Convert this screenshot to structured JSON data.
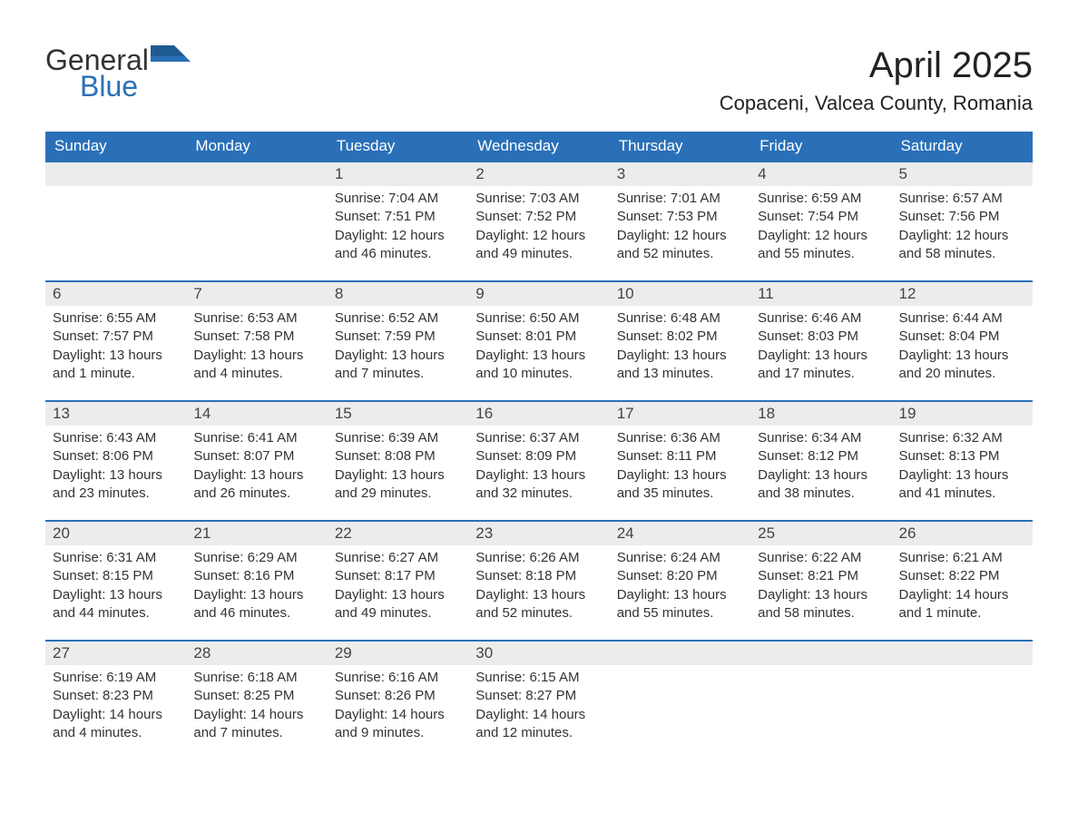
{
  "logo": {
    "word1": "General",
    "word2": "Blue"
  },
  "title": "April 2025",
  "location": "Copaceni, Valcea County, Romania",
  "colors": {
    "header_bg": "#2a70b8",
    "header_text": "#ffffff",
    "daynum_bg": "#ececec",
    "border_top": "#2a70b8",
    "text": "#333333"
  },
  "weekdays": [
    "Sunday",
    "Monday",
    "Tuesday",
    "Wednesday",
    "Thursday",
    "Friday",
    "Saturday"
  ],
  "cells": [
    {
      "day": "",
      "sunrise": "",
      "sunset": "",
      "daylight": ""
    },
    {
      "day": "",
      "sunrise": "",
      "sunset": "",
      "daylight": ""
    },
    {
      "day": "1",
      "sunrise": "Sunrise: 7:04 AM",
      "sunset": "Sunset: 7:51 PM",
      "daylight": "Daylight: 12 hours and 46 minutes."
    },
    {
      "day": "2",
      "sunrise": "Sunrise: 7:03 AM",
      "sunset": "Sunset: 7:52 PM",
      "daylight": "Daylight: 12 hours and 49 minutes."
    },
    {
      "day": "3",
      "sunrise": "Sunrise: 7:01 AM",
      "sunset": "Sunset: 7:53 PM",
      "daylight": "Daylight: 12 hours and 52 minutes."
    },
    {
      "day": "4",
      "sunrise": "Sunrise: 6:59 AM",
      "sunset": "Sunset: 7:54 PM",
      "daylight": "Daylight: 12 hours and 55 minutes."
    },
    {
      "day": "5",
      "sunrise": "Sunrise: 6:57 AM",
      "sunset": "Sunset: 7:56 PM",
      "daylight": "Daylight: 12 hours and 58 minutes."
    },
    {
      "day": "6",
      "sunrise": "Sunrise: 6:55 AM",
      "sunset": "Sunset: 7:57 PM",
      "daylight": "Daylight: 13 hours and 1 minute."
    },
    {
      "day": "7",
      "sunrise": "Sunrise: 6:53 AM",
      "sunset": "Sunset: 7:58 PM",
      "daylight": "Daylight: 13 hours and 4 minutes."
    },
    {
      "day": "8",
      "sunrise": "Sunrise: 6:52 AM",
      "sunset": "Sunset: 7:59 PM",
      "daylight": "Daylight: 13 hours and 7 minutes."
    },
    {
      "day": "9",
      "sunrise": "Sunrise: 6:50 AM",
      "sunset": "Sunset: 8:01 PM",
      "daylight": "Daylight: 13 hours and 10 minutes."
    },
    {
      "day": "10",
      "sunrise": "Sunrise: 6:48 AM",
      "sunset": "Sunset: 8:02 PM",
      "daylight": "Daylight: 13 hours and 13 minutes."
    },
    {
      "day": "11",
      "sunrise": "Sunrise: 6:46 AM",
      "sunset": "Sunset: 8:03 PM",
      "daylight": "Daylight: 13 hours and 17 minutes."
    },
    {
      "day": "12",
      "sunrise": "Sunrise: 6:44 AM",
      "sunset": "Sunset: 8:04 PM",
      "daylight": "Daylight: 13 hours and 20 minutes."
    },
    {
      "day": "13",
      "sunrise": "Sunrise: 6:43 AM",
      "sunset": "Sunset: 8:06 PM",
      "daylight": "Daylight: 13 hours and 23 minutes."
    },
    {
      "day": "14",
      "sunrise": "Sunrise: 6:41 AM",
      "sunset": "Sunset: 8:07 PM",
      "daylight": "Daylight: 13 hours and 26 minutes."
    },
    {
      "day": "15",
      "sunrise": "Sunrise: 6:39 AM",
      "sunset": "Sunset: 8:08 PM",
      "daylight": "Daylight: 13 hours and 29 minutes."
    },
    {
      "day": "16",
      "sunrise": "Sunrise: 6:37 AM",
      "sunset": "Sunset: 8:09 PM",
      "daylight": "Daylight: 13 hours and 32 minutes."
    },
    {
      "day": "17",
      "sunrise": "Sunrise: 6:36 AM",
      "sunset": "Sunset: 8:11 PM",
      "daylight": "Daylight: 13 hours and 35 minutes."
    },
    {
      "day": "18",
      "sunrise": "Sunrise: 6:34 AM",
      "sunset": "Sunset: 8:12 PM",
      "daylight": "Daylight: 13 hours and 38 minutes."
    },
    {
      "day": "19",
      "sunrise": "Sunrise: 6:32 AM",
      "sunset": "Sunset: 8:13 PM",
      "daylight": "Daylight: 13 hours and 41 minutes."
    },
    {
      "day": "20",
      "sunrise": "Sunrise: 6:31 AM",
      "sunset": "Sunset: 8:15 PM",
      "daylight": "Daylight: 13 hours and 44 minutes."
    },
    {
      "day": "21",
      "sunrise": "Sunrise: 6:29 AM",
      "sunset": "Sunset: 8:16 PM",
      "daylight": "Daylight: 13 hours and 46 minutes."
    },
    {
      "day": "22",
      "sunrise": "Sunrise: 6:27 AM",
      "sunset": "Sunset: 8:17 PM",
      "daylight": "Daylight: 13 hours and 49 minutes."
    },
    {
      "day": "23",
      "sunrise": "Sunrise: 6:26 AM",
      "sunset": "Sunset: 8:18 PM",
      "daylight": "Daylight: 13 hours and 52 minutes."
    },
    {
      "day": "24",
      "sunrise": "Sunrise: 6:24 AM",
      "sunset": "Sunset: 8:20 PM",
      "daylight": "Daylight: 13 hours and 55 minutes."
    },
    {
      "day": "25",
      "sunrise": "Sunrise: 6:22 AM",
      "sunset": "Sunset: 8:21 PM",
      "daylight": "Daylight: 13 hours and 58 minutes."
    },
    {
      "day": "26",
      "sunrise": "Sunrise: 6:21 AM",
      "sunset": "Sunset: 8:22 PM",
      "daylight": "Daylight: 14 hours and 1 minute."
    },
    {
      "day": "27",
      "sunrise": "Sunrise: 6:19 AM",
      "sunset": "Sunset: 8:23 PM",
      "daylight": "Daylight: 14 hours and 4 minutes."
    },
    {
      "day": "28",
      "sunrise": "Sunrise: 6:18 AM",
      "sunset": "Sunset: 8:25 PM",
      "daylight": "Daylight: 14 hours and 7 minutes."
    },
    {
      "day": "29",
      "sunrise": "Sunrise: 6:16 AM",
      "sunset": "Sunset: 8:26 PM",
      "daylight": "Daylight: 14 hours and 9 minutes."
    },
    {
      "day": "30",
      "sunrise": "Sunrise: 6:15 AM",
      "sunset": "Sunset: 8:27 PM",
      "daylight": "Daylight: 14 hours and 12 minutes."
    },
    {
      "day": "",
      "sunrise": "",
      "sunset": "",
      "daylight": ""
    },
    {
      "day": "",
      "sunrise": "",
      "sunset": "",
      "daylight": ""
    },
    {
      "day": "",
      "sunrise": "",
      "sunset": "",
      "daylight": ""
    }
  ]
}
